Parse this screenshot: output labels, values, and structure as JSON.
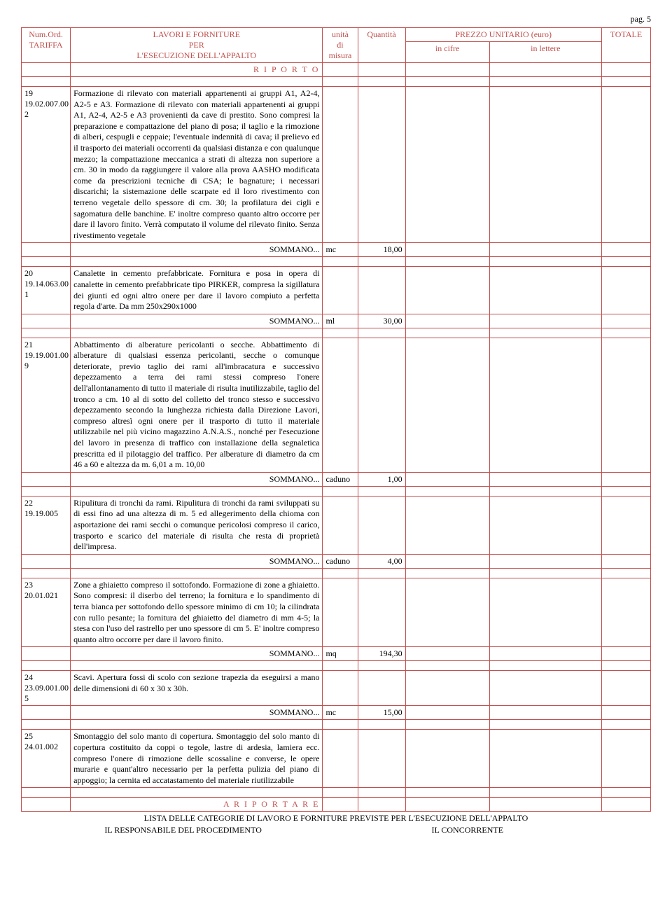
{
  "page_label": "pag. 5",
  "header": {
    "numord1": "Num.Ord.",
    "numord2": "TARIFFA",
    "lavori1": "LAVORI E FORNITURE",
    "lavori2": "PER",
    "lavori3": "L'ESECUZIONE DELL'APPALTO",
    "unita1": "unità",
    "unita2": "di",
    "unita3": "misura",
    "quantita": "Quantità",
    "prezzo": "PREZZO UNITARIO (euro)",
    "incifre": "in cifre",
    "inlettere": "in lettere",
    "totale": "TOTALE"
  },
  "riporto": "R I P O R T O",
  "ariportare": "A  R I P O R T A R E",
  "sommano": "SOMMANO...",
  "items": [
    {
      "n": "19",
      "code": "19.02.007.00",
      "sub": "2",
      "desc": "Formazione di rilevato con materiali appartenenti ai gruppi A1, A2-4, A2-5 e A3. Formazione di rilevato con materiali appartenenti ai gruppi A1, A2-4, A2-5 e A3 provenienti da cave di prestito. Sono compresi la preparazione e compattazione del piano di posa; il taglio e la rimozione di alberi, cespugli e ceppaie; l'eventuale indennità di cava; il prelievo ed il trasporto dei materiali occorrenti da qualsiasi distanza e con qualunque mezzo; la compattazione meccanica a strati di altezza non superiore a cm. 30 in modo da raggiungere il valore alla prova AASHO modificata come da prescrizioni tecniche di CSA; le bagnature; i necessari discarichi; la sistemazione delle scarpate ed il loro rivestimento con terreno vegetale dello spessore di cm. 30; la profilatura dei cigli e sagomatura delle banchine. E' inoltre compreso quanto altro occorre per dare il lavoro finito. Verrà computato il volume del rilevato finito. Senza rivestimento vegetale",
      "unit": "mc",
      "qty": "18,00"
    },
    {
      "n": "20",
      "code": "19.14.063.00",
      "sub": "1",
      "desc": "Canalette in cemento prefabbricate. Fornitura e posa in opera di canalette in cemento prefabbricate tipo PIRKER, compresa la sigillatura dei giunti ed ogni altro onere per dare il lavoro compiuto a perfetta regola d'arte. Da mm 250x290x1000",
      "unit": "ml",
      "qty": "30,00"
    },
    {
      "n": "21",
      "code": "19.19.001.00",
      "sub": "9",
      "desc": "Abbattimento di alberature pericolanti o secche. Abbattimento di alberature di qualsiasi essenza pericolanti, secche o comunque deteriorate, previo taglio dei rami all'imbracatura e successivo depezzamento a terra dei rami stessi compreso l'onere dell'allontanamento di tutto il materiale di risulta inutilizzabile, taglio del tronco a cm. 10 al di sotto del colletto del tronco stesso e successivo depezzamento secondo la lunghezza richiesta dalla Direzione Lavori, compreso altresì ogni onere per il trasporto di tutto il materiale utilizzabile nel più vicino magazzino A.N.A.S., nonché per l'esecuzione del lavoro in presenza di traffico con installazione della segnaletica prescritta ed il pilotaggio del traffico. Per alberature di diametro da cm 46 a 60 e altezza da m. 6,01 a m. 10,00",
      "unit": "caduno",
      "qty": "1,00"
    },
    {
      "n": "22",
      "code": "19.19.005",
      "sub": "",
      "desc": "Ripulitura di tronchi da rami. Ripulitura di tronchi da rami sviluppati su di essi fino ad una altezza di m. 5 ed allegerimento della chioma con asportazione dei rami secchi o comunque pericolosi compreso il carico, trasporto e scarico del materiale di risulta che resta di proprietà dell'impresa.",
      "unit": "caduno",
      "qty": "4,00"
    },
    {
      "n": "23",
      "code": "20.01.021",
      "sub": "",
      "desc": "Zone a ghiaietto compreso il sottofondo. Formazione di zone a ghiaietto. Sono compresi: il diserbo del terreno; la fornitura e lo spandimento di terra bianca per sottofondo dello spessore minimo di cm 10; la cilindrata con rullo pesante; la fornitura del ghiaietto del diametro di mm 4-5; la stesa con l'uso del rastrello per uno spessore di cm 5. E' inoltre compreso quanto altro occorre per dare il lavoro finito.",
      "unit": "mq",
      "qty": "194,30"
    },
    {
      "n": "24",
      "code": "23.09.001.00",
      "sub": "5",
      "desc": "Scavi. Apertura fossi di scolo con sezione trapezia da eseguirsi a mano delle dimensioni di 60 x 30 x 30h.",
      "unit": "mc",
      "qty": "15,00"
    },
    {
      "n": "25",
      "code": "24.01.002",
      "sub": "",
      "desc": "Smontaggio del solo manto di copertura. Smontaggio del solo manto di copertura costituito da coppi o tegole, lastre di ardesia, lamiera ecc. compreso l'onere di rimozione delle scossaline e converse, le opere murarie e quant'altro necessario per la perfetta pulizia del piano di appoggio; la cernita ed accatastamento del materiale riutilizzabile",
      "unit": "",
      "qty": ""
    }
  ],
  "footer": {
    "line1": "LISTA DELLE CATEGORIE DI LAVORO E FORNITURE PREVISTE PER L'ESECUZIONE DELL'APPALTO",
    "left": "IL RESPONSABILE DEL PROCEDIMENTO",
    "right": "IL CONCORRENTE"
  },
  "colors": {
    "border": "#c0504d",
    "text": "#000000"
  }
}
